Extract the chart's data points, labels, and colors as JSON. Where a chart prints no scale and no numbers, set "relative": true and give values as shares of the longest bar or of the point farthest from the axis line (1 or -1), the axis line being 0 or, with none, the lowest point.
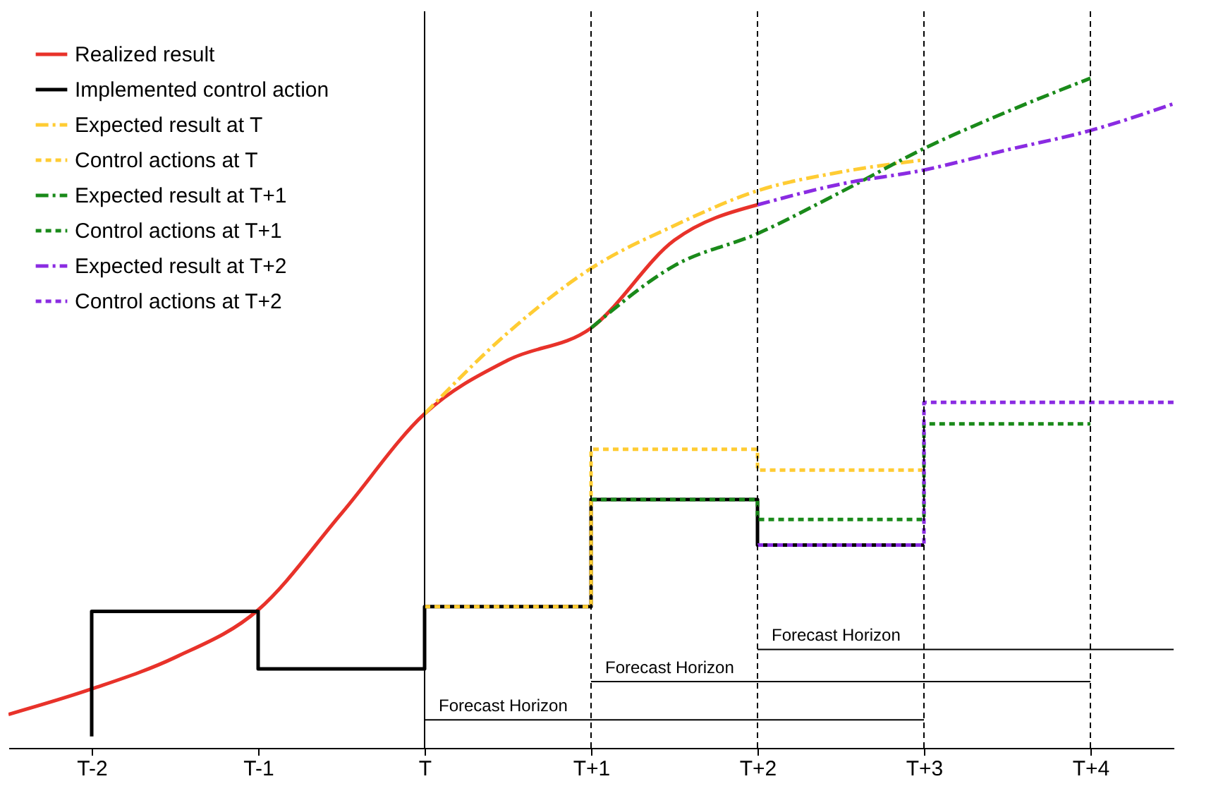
{
  "chart_data": {
    "type": "line",
    "relative": true,
    "legend": "top left",
    "grid": false,
    "categories": [
      null,
      "T-2",
      null,
      "T-1",
      null,
      "T",
      null,
      "T+1",
      null,
      "T+2",
      null,
      "T+3",
      null,
      "T+4",
      null
    ],
    "series": [
      {
        "name": "Realized result",
        "color": "#e8322a",
        "type": "line",
        "line_style": "solid",
        "values": [
          0.05,
          0.088,
          0.135,
          0.206,
          0.35,
          0.499,
          0.579,
          0.627,
          0.758,
          0.811,
          null,
          null,
          null,
          null,
          null
        ]
      },
      {
        "name": "Implemented control action",
        "color": "#000000",
        "type": "step",
        "line_style": "solid",
        "x": [
          "T-2",
          "T-2",
          "T-1",
          "T",
          "T+1",
          "T+2",
          "T+3"
        ],
        "values": [
          0.017,
          0.204,
          0.118,
          0.211,
          0.371,
          0.303,
          0.303
        ]
      },
      {
        "name": "Expected result at T",
        "color": "#ffcc33",
        "type": "line",
        "line_style": "dashed",
        "values": [
          null,
          null,
          null,
          null,
          null,
          0.499,
          0.62,
          0.716,
          0.78,
          0.832,
          0.86,
          0.878,
          null,
          null,
          null
        ]
      },
      {
        "name": "Control actions at T",
        "color": "#ffcc33",
        "type": "step",
        "line_style": "dotted",
        "values": [
          null,
          null,
          null,
          null,
          null,
          0.211,
          0.211,
          0.446,
          0.446,
          0.415,
          0.415,
          0.415,
          null,
          null,
          null
        ]
      },
      {
        "name": "Expected result at T+1",
        "color": "#1a8a1a",
        "type": "line",
        "line_style": "dashed",
        "values": [
          null,
          null,
          null,
          null,
          null,
          null,
          null,
          0.627,
          0.72,
          0.768,
          0.83,
          0.895,
          0.95,
          1,
          null
        ]
      },
      {
        "name": "Control actions at T+1",
        "color": "#1a8a1a",
        "type": "step",
        "line_style": "dotted",
        "values": [
          null,
          null,
          null,
          null,
          null,
          null,
          null,
          0.371,
          0.371,
          0.341,
          0.341,
          0.484,
          0.484,
          0.484,
          null
        ]
      },
      {
        "name": "Expected result at T+2",
        "color": "#8a2be2",
        "type": "line",
        "line_style": "dashed",
        "values": [
          null,
          null,
          null,
          null,
          null,
          null,
          null,
          null,
          null,
          0.811,
          0.842,
          0.863,
          0.893,
          0.922,
          0.962
        ]
      },
      {
        "name": "Control actions at T+2",
        "color": "#8a2be2",
        "type": "step",
        "line_style": "dotted",
        "values": [
          null,
          null,
          null,
          null,
          null,
          null,
          null,
          null,
          null,
          0.303,
          0.303,
          0.516,
          0.516,
          0.516,
          0.516
        ]
      }
    ],
    "ref_lines": [
      {
        "axis": "x",
        "value": "T",
        "line_style": "solid",
        "color": "#000000"
      },
      {
        "axis": "x",
        "value": "T+1",
        "line_style": "dotted",
        "color": "#000000"
      },
      {
        "axis": "x",
        "value": "T+2",
        "line_style": "dotted",
        "color": "#000000"
      },
      {
        "axis": "x",
        "value": "T+3",
        "line_style": "dotted",
        "color": "#000000"
      },
      {
        "axis": "x",
        "value": "T+4",
        "line_style": "dotted",
        "color": "#000000"
      }
    ],
    "annotations": [
      {
        "text": "Forecast Horizon",
        "x": "T",
        "y": 0.042
      },
      {
        "text": "Forecast Horizon",
        "x": "T+1",
        "y": 0.099
      },
      {
        "text": "Forecast Horizon",
        "x": "T+2",
        "y": 0.147
      }
    ]
  }
}
